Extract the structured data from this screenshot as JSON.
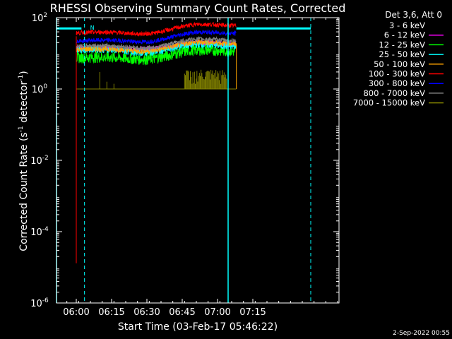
{
  "chart_data": {
    "type": "line",
    "title": "RHESSI Observing Summary Count Rates, Corrected",
    "xlabel": "Start Time (03-Feb-17 05:46:22)",
    "ylabel_main": "Corrected Count Rate (s",
    "ylabel_sup1": "-1",
    "ylabel_mid": " detector",
    "ylabel_sup2": "-1",
    "ylabel_end": ")",
    "y_scale": "log",
    "ylim": [
      1e-06,
      100
    ],
    "xlim_minutes": [
      5.6,
      125.6
    ],
    "x_ticks": [
      {
        "label": "06:00",
        "minutes": 14
      },
      {
        "label": "06:15",
        "minutes": 29
      },
      {
        "label": "06:30",
        "minutes": 44
      },
      {
        "label": "06:45",
        "minutes": 59
      },
      {
        "label": "07:00",
        "minutes": 74
      },
      {
        "label": "07:15",
        "minutes": 89
      }
    ],
    "y_ticks": [
      {
        "base": "10",
        "exp": "2",
        "value": 100
      },
      {
        "base": "10",
        "exp": "0",
        "value": 1
      },
      {
        "base": "10",
        "exp": "-2",
        "value": 0.01
      },
      {
        "base": "10",
        "exp": "-4",
        "value": 0.0001
      },
      {
        "base": "10",
        "exp": "-6",
        "value": 1e-06
      }
    ],
    "legend_title": "Det 3,6, Att 0",
    "legend_position": "top-right",
    "observation_window_minutes": [
      14,
      82
    ],
    "series": [
      {
        "name": "3 - 6 keV",
        "color": "#000000",
        "start": 20,
        "mid": 18,
        "end": 24,
        "noise": 0.08
      },
      {
        "name": "6 - 12 keV",
        "color": "#ff00ff",
        "start": 14,
        "mid": 13,
        "end": 17,
        "noise": 0.08
      },
      {
        "name": "12 - 25 keV",
        "color": "#00ff00",
        "start": 7.5,
        "mid": 5,
        "end": 11,
        "noise": 0.16
      },
      {
        "name": "25 - 50 keV",
        "color": "#00ffff",
        "start": 13,
        "mid": 10,
        "end": 15,
        "noise": 0.1
      },
      {
        "name": "50 - 100 keV",
        "color": "#ffa500",
        "start": 13,
        "mid": 10.5,
        "end": 18,
        "noise": 0.08
      },
      {
        "name": "100 - 300 keV",
        "color": "#ff0000",
        "start": 37,
        "mid": 30,
        "end": 58,
        "noise": 0.06
      },
      {
        "name": "300 - 800 keV",
        "color": "#0000ff",
        "start": 22,
        "mid": 19,
        "end": 35,
        "noise": 0.06
      },
      {
        "name": "800 - 7000 keV",
        "color": "#808080",
        "start": 16,
        "mid": 13,
        "end": 22,
        "noise": 0.06
      },
      {
        "name": "7000 - 15000 keV",
        "color": "#808000",
        "start": 1,
        "mid": 1,
        "end": 1,
        "noise": 0
      }
    ],
    "markers": {
      "flag_label": "N",
      "cyan_dashed_minutes": [
        17.5,
        113.6
      ],
      "cyan_solid_minutes": [
        5.6,
        78.5
      ],
      "cyan_bar_level": 50,
      "red_drop_minutes": 14,
      "red_drop_min_value": 1.3e-05
    }
  },
  "footer": {
    "timestamp": "2-Sep-2022 00:55"
  },
  "colors": {
    "background": "#000000",
    "axes": "#ffffff",
    "marker": "#00ffff"
  }
}
